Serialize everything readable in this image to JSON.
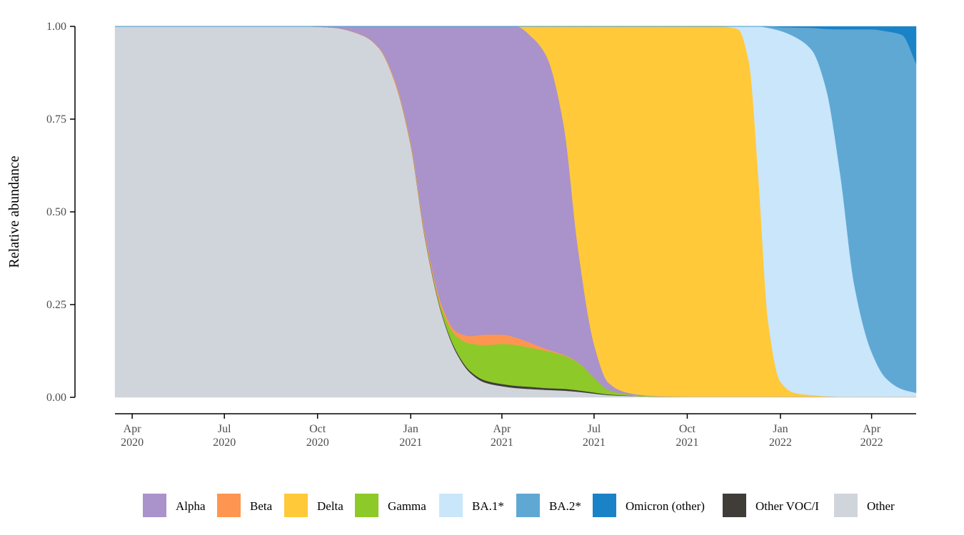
{
  "chart_data": {
    "type": "area",
    "stacked": true,
    "normalized": true,
    "title": "",
    "xlabel": "",
    "ylabel": "Relative abundance",
    "ylim": [
      0,
      1
    ],
    "y_ticks": [
      "0.00",
      "0.25",
      "0.50",
      "0.75",
      "1.00"
    ],
    "x_ticks": [
      {
        "date": "2020-04-01",
        "month": "Apr",
        "year": "2020"
      },
      {
        "date": "2020-07-01",
        "month": "Jul",
        "year": "2020"
      },
      {
        "date": "2020-10-01",
        "month": "Oct",
        "year": "2020"
      },
      {
        "date": "2021-01-01",
        "month": "Jan",
        "year": "2021"
      },
      {
        "date": "2021-04-01",
        "month": "Apr",
        "year": "2021"
      },
      {
        "date": "2021-07-01",
        "month": "Jul",
        "year": "2021"
      },
      {
        "date": "2021-10-01",
        "month": "Oct",
        "year": "2021"
      },
      {
        "date": "2022-01-01",
        "month": "Jan",
        "year": "2022"
      },
      {
        "date": "2022-04-01",
        "month": "Apr",
        "year": "2022"
      }
    ],
    "xlim": [
      "2020-03-15",
      "2022-05-15"
    ],
    "grid": false,
    "legend_position": "bottom",
    "x": [
      "2020-03-15",
      "2020-09-15",
      "2020-10-15",
      "2020-11-15",
      "2020-12-01",
      "2020-12-15",
      "2021-01-01",
      "2021-01-15",
      "2021-02-01",
      "2021-02-15",
      "2021-03-01",
      "2021-03-15",
      "2021-04-01",
      "2021-04-15",
      "2021-05-01",
      "2021-05-15",
      "2021-06-01",
      "2021-06-15",
      "2021-07-01",
      "2021-07-15",
      "2021-08-01",
      "2021-08-15",
      "2021-09-01",
      "2021-10-01",
      "2021-11-01",
      "2021-11-20",
      "2021-12-01",
      "2021-12-10",
      "2021-12-20",
      "2022-01-01",
      "2022-01-15",
      "2022-02-01",
      "2022-02-15",
      "2022-03-01",
      "2022-03-15",
      "2022-04-01",
      "2022-04-15",
      "2022-05-01",
      "2022-05-15"
    ],
    "series": [
      {
        "name": "Other",
        "color": "#D0D5DC",
        "values": [
          1.0,
          1.0,
          0.997,
          0.975,
          0.94,
          0.86,
          0.68,
          0.43,
          0.22,
          0.12,
          0.065,
          0.04,
          0.03,
          0.025,
          0.022,
          0.02,
          0.018,
          0.015,
          0.01,
          0.006,
          0.004,
          0.003,
          0.002,
          0.002,
          0.002,
          0.002,
          0.002,
          0.002,
          0.002,
          0.002,
          0.002,
          0.002,
          0.002,
          0.002,
          0.002,
          0.002,
          0.002,
          0.002,
          0.002
        ]
      },
      {
        "name": "Other VOC/I",
        "color": "#403D38",
        "values": [
          0,
          0,
          0,
          0,
          0,
          0,
          0.002,
          0.003,
          0.004,
          0.005,
          0.005,
          0.006,
          0.006,
          0.006,
          0.006,
          0.005,
          0.005,
          0.004,
          0.003,
          0.002,
          0.001,
          0,
          0,
          0,
          0,
          0,
          0,
          0,
          0,
          0,
          0,
          0,
          0,
          0,
          0,
          0,
          0,
          0,
          0
        ]
      },
      {
        "name": "Gamma",
        "color": "#8DC928",
        "values": [
          0,
          0,
          0,
          0,
          0,
          0,
          0.001,
          0.003,
          0.012,
          0.04,
          0.075,
          0.095,
          0.108,
          0.11,
          0.105,
          0.1,
          0.09,
          0.075,
          0.04,
          0.012,
          0.004,
          0.002,
          0.001,
          0,
          0,
          0,
          0,
          0,
          0,
          0,
          0,
          0,
          0,
          0,
          0,
          0,
          0,
          0,
          0
        ]
      },
      {
        "name": "Beta",
        "color": "#FE9651",
        "values": [
          0,
          0,
          0,
          0.001,
          0.002,
          0.005,
          0.007,
          0.009,
          0.01,
          0.012,
          0.02,
          0.028,
          0.025,
          0.02,
          0.012,
          0.005,
          0.002,
          0.001,
          0,
          0,
          0,
          0,
          0,
          0,
          0,
          0,
          0,
          0,
          0,
          0,
          0,
          0,
          0,
          0,
          0,
          0,
          0,
          0,
          0
        ]
      },
      {
        "name": "Alpha",
        "color": "#AA92CB",
        "values": [
          0,
          0,
          0.003,
          0.024,
          0.058,
          0.135,
          0.31,
          0.555,
          0.754,
          0.823,
          0.835,
          0.831,
          0.831,
          0.839,
          0.825,
          0.79,
          0.62,
          0.31,
          0.09,
          0.02,
          0.005,
          0.002,
          0,
          0,
          0,
          0,
          0,
          0,
          0,
          0,
          0,
          0,
          0,
          0,
          0,
          0,
          0,
          0,
          0
        ]
      },
      {
        "name": "Delta",
        "color": "#FFC93A",
        "values": [
          0,
          0,
          0,
          0,
          0,
          0,
          0,
          0,
          0,
          0,
          0,
          0,
          0,
          0,
          0.03,
          0.08,
          0.265,
          0.595,
          0.857,
          0.96,
          0.99,
          0.995,
          0.997,
          0.998,
          0.998,
          0.99,
          0.9,
          0.6,
          0.2,
          0.04,
          0.01,
          0.004,
          0.001,
          0,
          0,
          0,
          0,
          0,
          0
        ]
      },
      {
        "name": "BA.1*",
        "color": "#C9E6FB",
        "values": [
          0,
          0,
          0,
          0,
          0,
          0,
          0,
          0,
          0,
          0,
          0,
          0,
          0,
          0,
          0,
          0,
          0,
          0,
          0,
          0,
          0,
          0,
          0,
          0,
          0,
          0.007,
          0.097,
          0.396,
          0.793,
          0.946,
          0.96,
          0.93,
          0.83,
          0.6,
          0.3,
          0.12,
          0.05,
          0.02,
          0.01
        ]
      },
      {
        "name": "BA.2*",
        "color": "#5FA8D4",
        "values": [
          0,
          0,
          0,
          0,
          0,
          0,
          0,
          0,
          0,
          0,
          0,
          0,
          0,
          0,
          0,
          0,
          0,
          0,
          0,
          0,
          0,
          0,
          0,
          0,
          0,
          0,
          0,
          0,
          0.004,
          0.01,
          0.025,
          0.06,
          0.16,
          0.39,
          0.69,
          0.87,
          0.935,
          0.955,
          0.888
        ]
      },
      {
        "name": "Omicron (other)",
        "color": "#1A83C7",
        "values": [
          0,
          0,
          0,
          0,
          0,
          0,
          0,
          0,
          0,
          0,
          0,
          0,
          0,
          0,
          0,
          0,
          0,
          0,
          0,
          0,
          0,
          0,
          0,
          0,
          0,
          0,
          0,
          0,
          0,
          0.002,
          0.003,
          0.004,
          0.007,
          0.008,
          0.008,
          0.008,
          0.013,
          0.023,
          0.1
        ]
      }
    ],
    "legend": [
      {
        "label": "Alpha",
        "color": "#AA92CB"
      },
      {
        "label": "Beta",
        "color": "#FE9651"
      },
      {
        "label": "Delta",
        "color": "#FFC93A"
      },
      {
        "label": "Gamma",
        "color": "#8DC928"
      },
      {
        "label": "BA.1*",
        "color": "#C9E6FB"
      },
      {
        "label": "BA.2*",
        "color": "#5FA8D4"
      },
      {
        "label": "Omicron (other)",
        "color": "#1A83C7"
      },
      {
        "label": "Other VOC/I",
        "color": "#403D38"
      },
      {
        "label": "Other",
        "color": "#D0D5DC"
      }
    ]
  }
}
